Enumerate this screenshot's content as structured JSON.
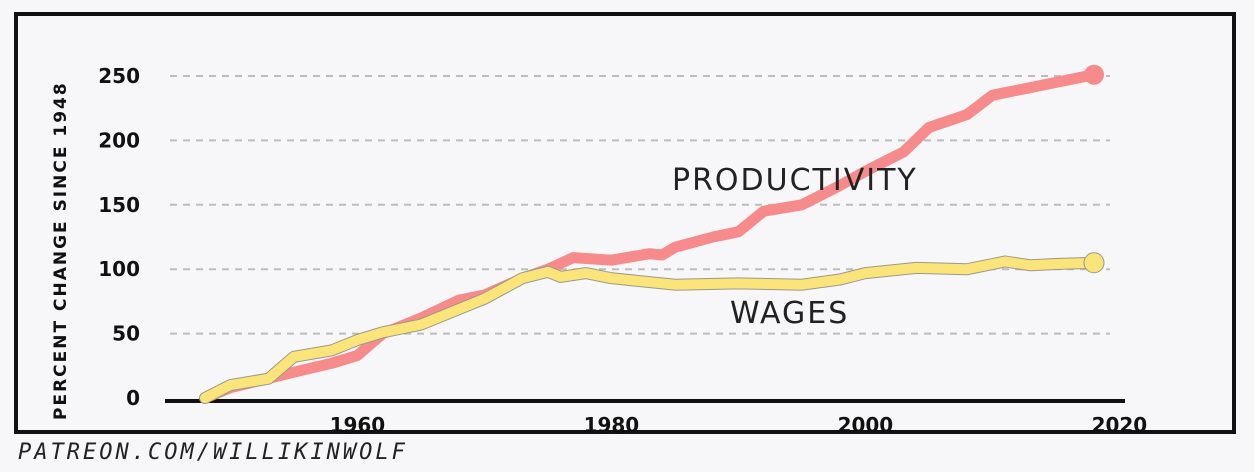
{
  "chart_data": {
    "type": "line",
    "title": "",
    "xlabel": "",
    "ylabel": "PERCENT CHANGE SINCE 1948",
    "xlim": [
      1944,
      2024
    ],
    "ylim": [
      0,
      250
    ],
    "xticks": [
      1960,
      1980,
      2000,
      2020
    ],
    "yticks": [
      0,
      50,
      100,
      150,
      200,
      250
    ],
    "grid": "horizontal dashed",
    "colors": {
      "productivity": "#f78a8a",
      "wages": "#fbe479",
      "grid": "#bdbdbd"
    },
    "series": [
      {
        "name": "PRODUCTIVITY",
        "x": [
          1948,
          1950,
          1955,
          1958,
          1960,
          1962,
          1965,
          1968,
          1970,
          1973,
          1975,
          1977,
          1980,
          1983,
          1984,
          1985,
          1988,
          1990,
          1992,
          1995,
          1998,
          2000,
          2003,
          2005,
          2008,
          2010,
          2011,
          2013,
          2015,
          2018
        ],
        "y": [
          0,
          8,
          20,
          27,
          33,
          50,
          62,
          76,
          80,
          93,
          100,
          109,
          107,
          112,
          111,
          117,
          125,
          129,
          145,
          150,
          165,
          176,
          191,
          210,
          220,
          235,
          237,
          241,
          245,
          251
        ]
      },
      {
        "name": "WAGES",
        "x": [
          1948,
          1950,
          1953,
          1955,
          1958,
          1960,
          1962,
          1965,
          1968,
          1970,
          1973,
          1975,
          1976,
          1978,
          1980,
          1985,
          1990,
          1995,
          1998,
          2000,
          2004,
          2008,
          2011,
          2013,
          2015,
          2018
        ],
        "y": [
          0,
          10,
          15,
          32,
          37,
          45,
          51,
          57,
          69,
          77,
          93,
          98,
          94,
          97,
          93,
          88,
          89,
          88,
          92,
          97,
          101,
          100,
          106,
          103,
          104,
          105
        ]
      }
    ],
    "annotations": [
      "PRODUCTIVITY",
      "WAGES"
    ]
  },
  "footer": "PATREON.COM/WILLIKINWOLF"
}
